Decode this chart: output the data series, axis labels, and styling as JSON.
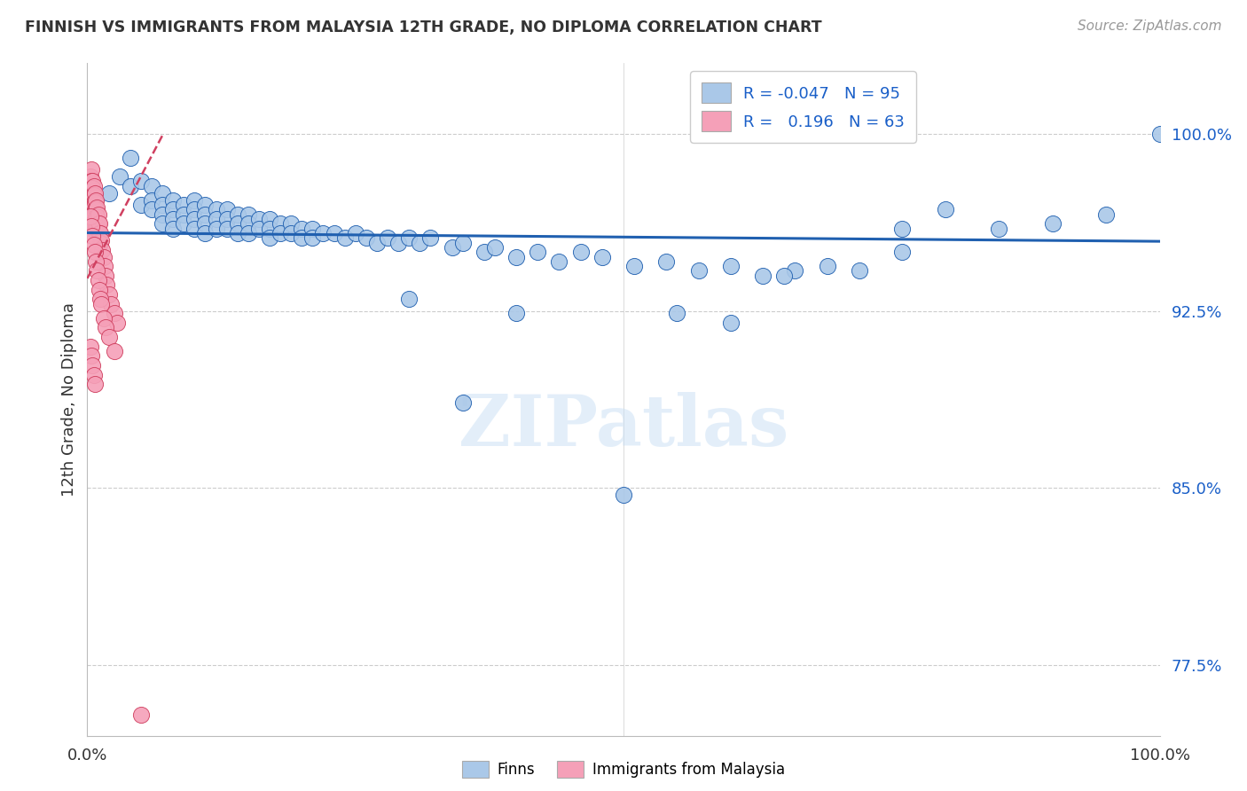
{
  "title": "FINNISH VS IMMIGRANTS FROM MALAYSIA 12TH GRADE, NO DIPLOMA CORRELATION CHART",
  "source": "Source: ZipAtlas.com",
  "ylabel": "12th Grade, No Diploma",
  "ytick_labels": [
    "77.5%",
    "85.0%",
    "92.5%",
    "100.0%"
  ],
  "ytick_values": [
    0.775,
    0.85,
    0.925,
    1.0
  ],
  "xlim": [
    0.0,
    1.0
  ],
  "ylim": [
    0.745,
    1.03
  ],
  "legend_r_finns": "-0.047",
  "legend_n_finns": "95",
  "legend_r_malay": "0.196",
  "legend_n_malay": "63",
  "finns_color": "#aac8e8",
  "malay_color": "#f5a0b8",
  "finns_line_color": "#2060b0",
  "malay_line_color": "#d04060",
  "watermark": "ZIPatlas",
  "finns_x": [
    0.02,
    0.03,
    0.04,
    0.04,
    0.05,
    0.05,
    0.06,
    0.06,
    0.06,
    0.07,
    0.07,
    0.07,
    0.07,
    0.08,
    0.08,
    0.08,
    0.08,
    0.09,
    0.09,
    0.09,
    0.1,
    0.1,
    0.1,
    0.1,
    0.11,
    0.11,
    0.11,
    0.11,
    0.12,
    0.12,
    0.12,
    0.13,
    0.13,
    0.13,
    0.14,
    0.14,
    0.14,
    0.15,
    0.15,
    0.15,
    0.16,
    0.16,
    0.17,
    0.17,
    0.17,
    0.18,
    0.18,
    0.19,
    0.19,
    0.2,
    0.2,
    0.21,
    0.21,
    0.22,
    0.23,
    0.24,
    0.25,
    0.26,
    0.27,
    0.28,
    0.29,
    0.3,
    0.31,
    0.32,
    0.34,
    0.35,
    0.37,
    0.38,
    0.4,
    0.42,
    0.44,
    0.46,
    0.48,
    0.51,
    0.54,
    0.57,
    0.6,
    0.63,
    0.66,
    0.69,
    0.72,
    0.76,
    0.8,
    0.85,
    0.9,
    0.95,
    0.3,
    0.35,
    0.4,
    0.5,
    0.55,
    0.6,
    0.65,
    0.76,
    1.0
  ],
  "finns_y": [
    0.975,
    0.982,
    0.99,
    0.978,
    0.98,
    0.97,
    0.978,
    0.972,
    0.968,
    0.975,
    0.97,
    0.966,
    0.962,
    0.972,
    0.968,
    0.964,
    0.96,
    0.97,
    0.966,
    0.962,
    0.972,
    0.968,
    0.964,
    0.96,
    0.97,
    0.966,
    0.962,
    0.958,
    0.968,
    0.964,
    0.96,
    0.968,
    0.964,
    0.96,
    0.966,
    0.962,
    0.958,
    0.966,
    0.962,
    0.958,
    0.964,
    0.96,
    0.964,
    0.96,
    0.956,
    0.962,
    0.958,
    0.962,
    0.958,
    0.96,
    0.956,
    0.96,
    0.956,
    0.958,
    0.958,
    0.956,
    0.958,
    0.956,
    0.954,
    0.956,
    0.954,
    0.956,
    0.954,
    0.956,
    0.952,
    0.954,
    0.95,
    0.952,
    0.948,
    0.95,
    0.946,
    0.95,
    0.948,
    0.944,
    0.946,
    0.942,
    0.944,
    0.94,
    0.942,
    0.944,
    0.942,
    0.95,
    0.968,
    0.96,
    0.962,
    0.966,
    0.93,
    0.886,
    0.924,
    0.847,
    0.924,
    0.92,
    0.94,
    0.96,
    1.0
  ],
  "malay_x": [
    0.003,
    0.003,
    0.004,
    0.004,
    0.004,
    0.005,
    0.005,
    0.005,
    0.005,
    0.005,
    0.006,
    0.006,
    0.006,
    0.006,
    0.007,
    0.007,
    0.007,
    0.007,
    0.007,
    0.008,
    0.008,
    0.008,
    0.009,
    0.009,
    0.009,
    0.01,
    0.01,
    0.01,
    0.011,
    0.011,
    0.012,
    0.012,
    0.013,
    0.014,
    0.015,
    0.016,
    0.017,
    0.018,
    0.02,
    0.022,
    0.025,
    0.028,
    0.003,
    0.004,
    0.005,
    0.006,
    0.007,
    0.008,
    0.009,
    0.01,
    0.011,
    0.012,
    0.013,
    0.015,
    0.017,
    0.02,
    0.025,
    0.003,
    0.004,
    0.005,
    0.006,
    0.007,
    0.05
  ],
  "malay_y": [
    0.982,
    0.978,
    0.985,
    0.98,
    0.976,
    0.98,
    0.977,
    0.973,
    0.97,
    0.966,
    0.978,
    0.974,
    0.97,
    0.966,
    0.975,
    0.971,
    0.967,
    0.963,
    0.959,
    0.972,
    0.968,
    0.964,
    0.969,
    0.965,
    0.961,
    0.966,
    0.962,
    0.958,
    0.962,
    0.958,
    0.958,
    0.954,
    0.955,
    0.951,
    0.948,
    0.944,
    0.94,
    0.936,
    0.932,
    0.928,
    0.924,
    0.92,
    0.965,
    0.961,
    0.957,
    0.953,
    0.95,
    0.946,
    0.942,
    0.938,
    0.934,
    0.93,
    0.928,
    0.922,
    0.918,
    0.914,
    0.908,
    0.91,
    0.906,
    0.902,
    0.898,
    0.894,
    0.754
  ]
}
